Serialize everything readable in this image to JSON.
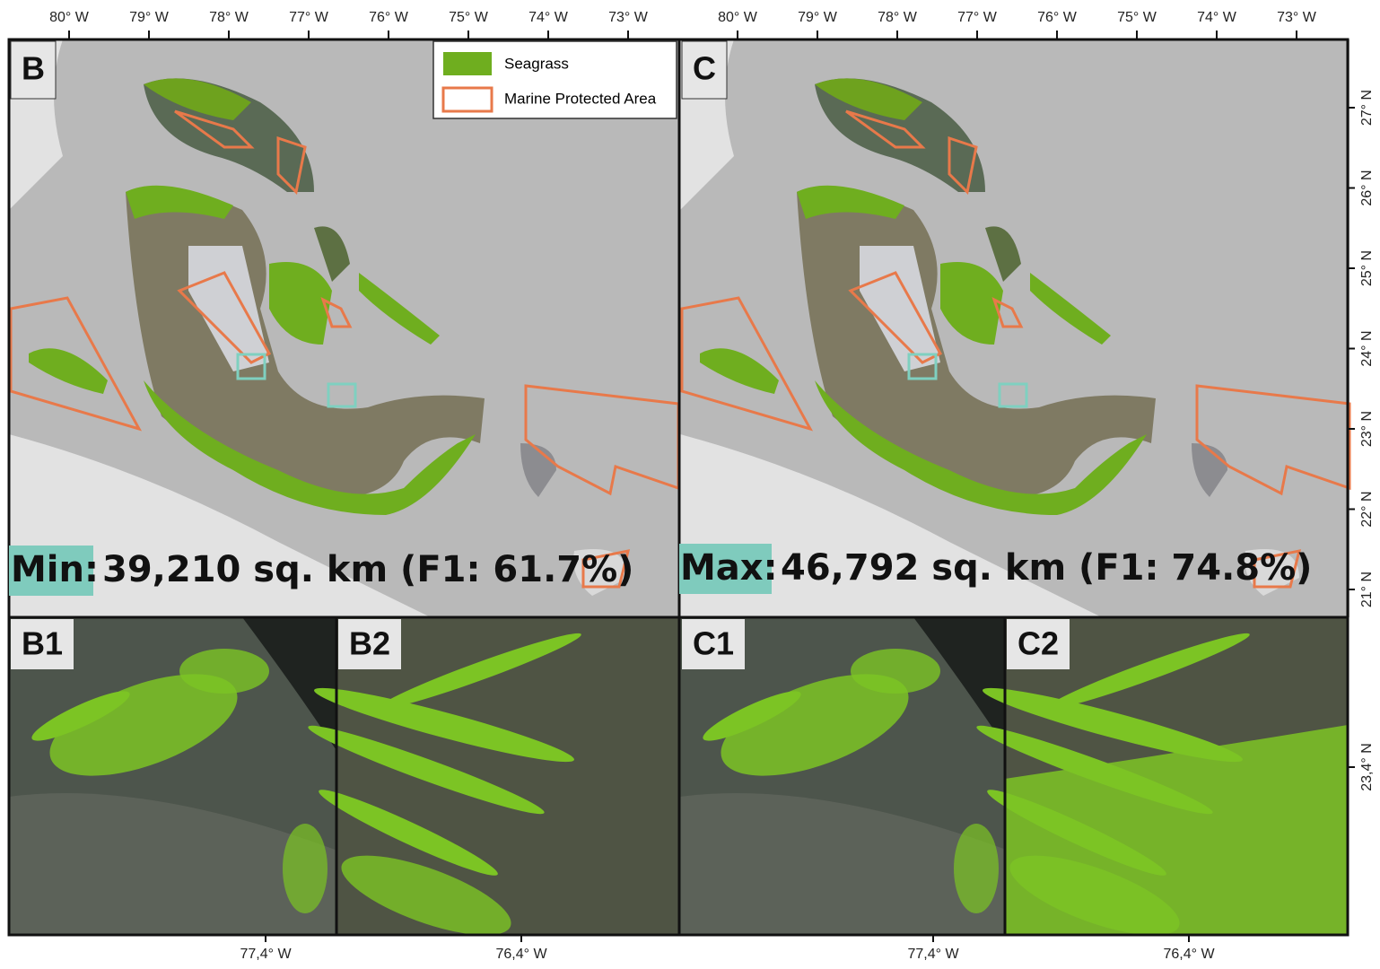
{
  "map_b": {
    "panel_label": "B",
    "lon_ticks": [
      "80° W",
      "79° W",
      "78° W",
      "77° W",
      "76° W",
      "75° W",
      "74° W",
      "73° W"
    ],
    "stat_label": "Min:",
    "stat_text": "39,210 sq. km (F1: 61.7%)"
  },
  "map_c": {
    "panel_label": "C",
    "lon_ticks": [
      "80° W",
      "79° W",
      "78° W",
      "77° W",
      "76° W",
      "75° W",
      "74° W",
      "73° W"
    ],
    "stat_label": "Max:",
    "stat_text": "46,792 sq. km (F1: 74.8%)"
  },
  "lat_ticks": [
    "27° N",
    "26° N",
    "25° N",
    "24° N",
    "23° N",
    "22° N",
    "21° N"
  ],
  "legend": {
    "items": [
      "Seagrass",
      "Marine Protected Area"
    ]
  },
  "insets": {
    "b1": {
      "panel_label": "B1",
      "lon_label": "77,4° W"
    },
    "b2": {
      "panel_label": "B2",
      "lon_label": "76,4° W"
    },
    "c1": {
      "panel_label": "C1",
      "lon_label": "77,4° W"
    },
    "c2": {
      "panel_label": "C2",
      "lon_label": "76,4° W"
    },
    "lat_label": "23,4° N"
  }
}
